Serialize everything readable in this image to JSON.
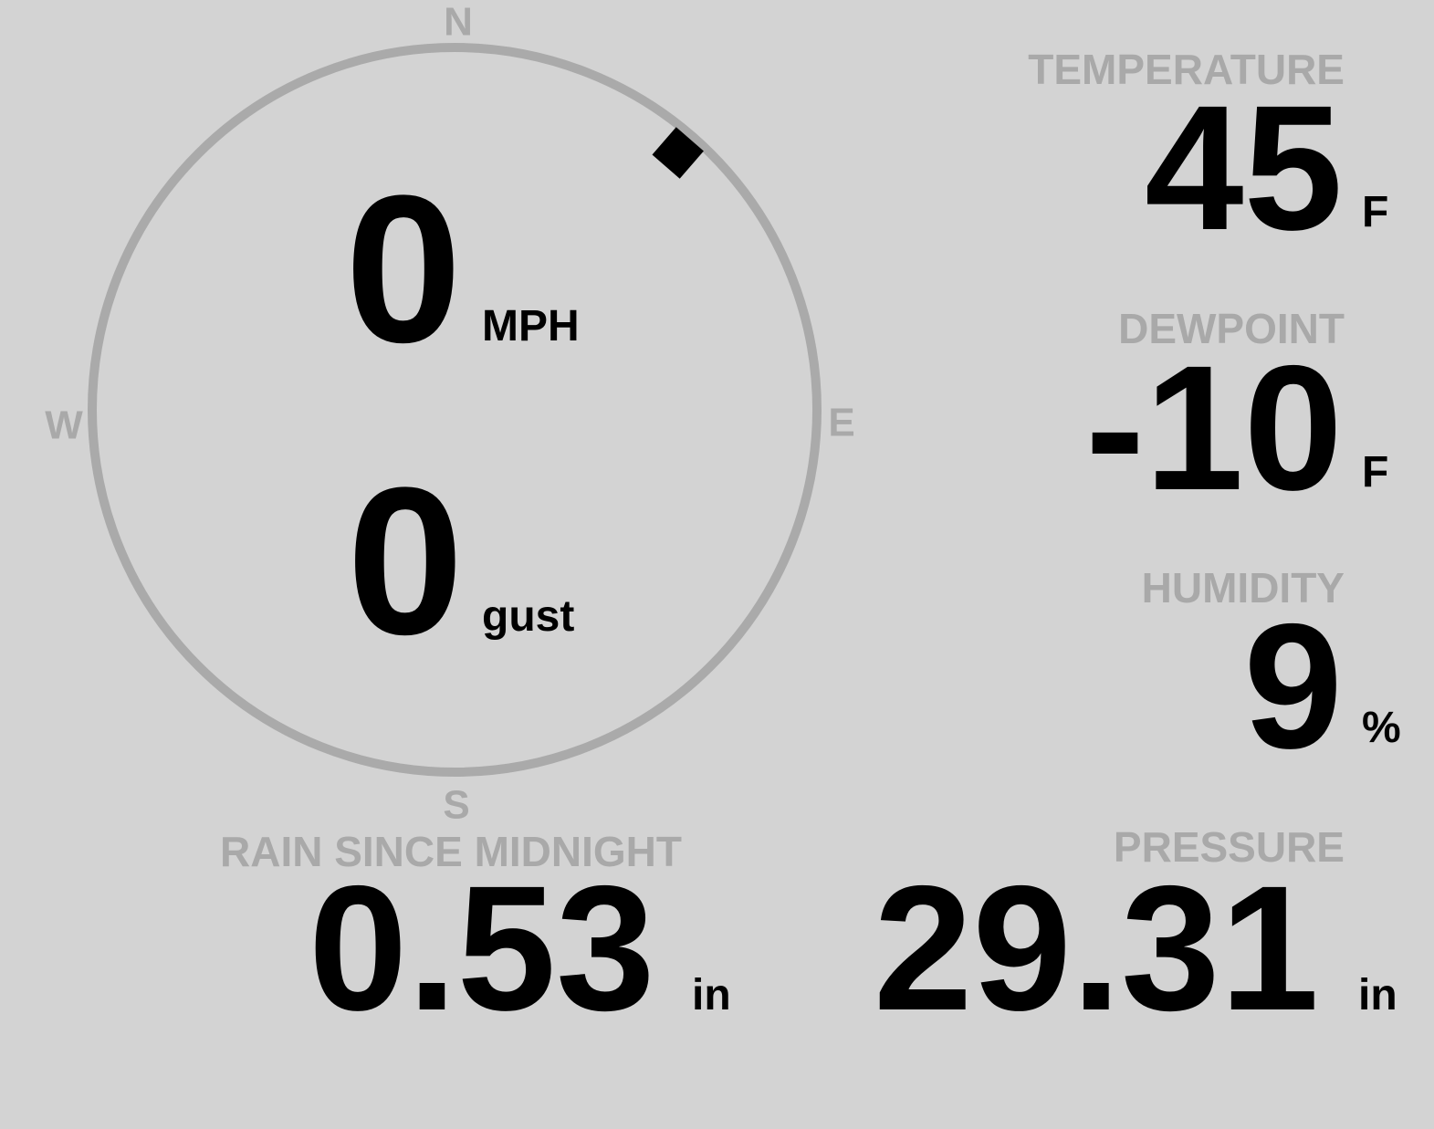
{
  "wind": {
    "speed": "0",
    "speed_unit": "MPH",
    "gust": "0",
    "gust_unit": "gust",
    "direction_deg": 41,
    "compass": {
      "n": "N",
      "e": "E",
      "s": "S",
      "w": "W"
    },
    "colors": {
      "ring": "#aaaaaa",
      "pointer": "#000000"
    }
  },
  "temperature": {
    "label": "TEMPERATURE",
    "value": "45",
    "unit": "F"
  },
  "dewpoint": {
    "label": "DEWPOINT",
    "value": "-10",
    "unit": "F"
  },
  "humidity": {
    "label": "HUMIDITY",
    "value": "9",
    "unit": "%"
  },
  "rain": {
    "label": "RAIN SINCE MIDNIGHT",
    "value": "0.53",
    "unit": "in"
  },
  "pressure": {
    "label": "PRESSURE",
    "value": "29.31",
    "unit": "in"
  },
  "colors": {
    "background": "#d3d3d3",
    "label": "#a9a9a9",
    "value": "#000000"
  }
}
